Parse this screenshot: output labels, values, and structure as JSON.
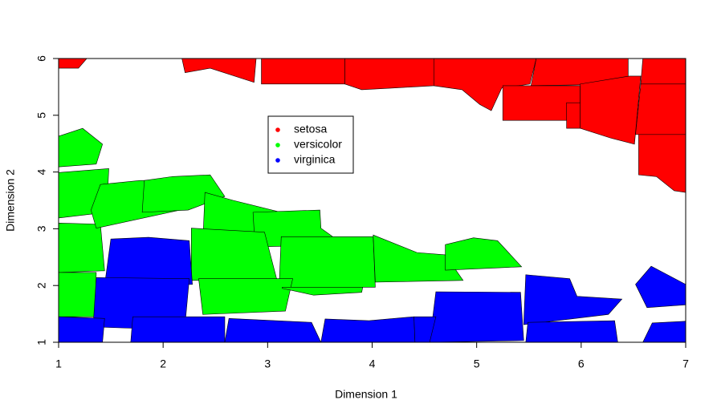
{
  "chart_data": {
    "type": "polygon",
    "x_label": "Dimension 1",
    "y_label": "Dimension 2",
    "xlim": [
      1,
      7
    ],
    "ylim": [
      1,
      6
    ],
    "xticks": [
      1,
      2,
      3,
      4,
      5,
      6,
      7
    ],
    "yticks": [
      1,
      2,
      3,
      4,
      5,
      6
    ],
    "series": [
      {
        "name": "setosa",
        "color": "#ff0000",
        "polygons": [
          {
            "x": [
              1,
              1.27,
              1.19,
              1
            ],
            "y": [
              6,
              6,
              5.83,
              5.83
            ]
          },
          {
            "x": [
              2.18,
              2.89,
              2.87,
              2.45,
              2.21
            ],
            "y": [
              6,
              6,
              5.58,
              5.83,
              5.75
            ]
          },
          {
            "x": [
              2.94,
              3.74,
              3.74,
              2.94
            ],
            "y": [
              6,
              6,
              5.55,
              5.55
            ]
          },
          {
            "x": [
              3.74,
              4.59,
              4.59,
              4.2,
              3.9,
              3.74
            ],
            "y": [
              6,
              6,
              5.52,
              5.48,
              5.45,
              5.55
            ]
          },
          {
            "x": [
              4.59,
              5.57,
              5.51,
              5.24,
              5.14,
              5.03,
              4.86,
              4.59
            ],
            "y": [
              6,
              6,
              5.55,
              5.48,
              5.08,
              5.19,
              5.45,
              5.52
            ]
          },
          {
            "x": [
              5.57,
              6.45,
              6.45,
              5.52
            ],
            "y": [
              6,
              6,
              5.55,
              5.52
            ]
          },
          {
            "x": [
              6.59,
              7,
              7,
              6.57
            ],
            "y": [
              6,
              6,
              5.55,
              5.55
            ]
          },
          {
            "x": [
              5.25,
              5.99,
              5.99,
              5.25
            ],
            "y": [
              5.52,
              5.52,
              4.91,
              4.91
            ]
          },
          {
            "x": [
              5.99,
              6.46,
              6.57,
              6.51,
              6.28,
              5.99
            ],
            "y": [
              5.55,
              5.69,
              5.69,
              4.49,
              4.6,
              4.77
            ]
          },
          {
            "x": [
              5.86,
              5.99,
              5.99,
              5.86
            ],
            "y": [
              5.22,
              5.22,
              4.77,
              4.77
            ]
          },
          {
            "x": [
              6.57,
              7,
              7,
              6.52
            ],
            "y": [
              5.55,
              5.55,
              4.66,
              4.66
            ]
          },
          {
            "x": [
              6.55,
              7,
              7,
              6.89,
              6.72,
              6.55
            ],
            "y": [
              4.66,
              4.66,
              3.64,
              3.67,
              3.92,
              3.95
            ]
          }
        ]
      },
      {
        "name": "versicolor",
        "color": "#00ff00",
        "polygons": [
          {
            "x": [
              1,
              1.23,
              1.42,
              1.36,
              1
            ],
            "y": [
              4.63,
              4.77,
              4.49,
              4.14,
              4.09
            ]
          },
          {
            "x": [
              1,
              1.48,
              1.46,
              1
            ],
            "y": [
              3.99,
              4.06,
              3.29,
              3.19
            ]
          },
          {
            "x": [
              1,
              1.4,
              1.44,
              1
            ],
            "y": [
              3.1,
              3.08,
              2.26,
              2.23
            ]
          },
          {
            "x": [
              1,
              1.36,
              1.35,
              1
            ],
            "y": [
              2.23,
              2.23,
              1.45,
              1.45
            ]
          },
          {
            "x": [
              1.4,
              1.78,
              2.28,
              2.24,
              1.36,
              1.31
            ],
            "y": [
              3.78,
              3.85,
              3.85,
              3.36,
              3.01,
              3.33
            ]
          },
          {
            "x": [
              1.82,
              2.09,
              2.45,
              2.59,
              2.24,
              1.8
            ],
            "y": [
              3.85,
              3.92,
              3.95,
              3.57,
              3.33,
              3.29
            ]
          },
          {
            "x": [
              2.4,
              2.67,
              3.13,
              2.86,
              2.38
            ],
            "y": [
              3.64,
              3.5,
              3.29,
              2.79,
              2.75
            ]
          },
          {
            "x": [
              2.86,
              3.5,
              3.51,
              3.73,
              2.88
            ],
            "y": [
              3.29,
              3.33,
              3.01,
              2.72,
              2.68
            ]
          },
          {
            "x": [
              2.27,
              2.97,
              3.09,
              2.27
            ],
            "y": [
              3.01,
              2.94,
              2.09,
              2.09
            ]
          },
          {
            "x": [
              3.13,
              4.01,
              4.03,
              3.11
            ],
            "y": [
              2.86,
              2.86,
              1.97,
              1.97
            ]
          },
          {
            "x": [
              4.01,
              4.43,
              4.7,
              4.87,
              4.03
            ],
            "y": [
              2.89,
              2.58,
              2.54,
              2.09,
              2.06
            ]
          },
          {
            "x": [
              4.7,
              4.97,
              5.2,
              5.43,
              4.7
            ],
            "y": [
              2.72,
              2.84,
              2.79,
              2.33,
              2.27
            ]
          },
          {
            "x": [
              2.34,
              3.24,
              3.17,
              2.38
            ],
            "y": [
              2.12,
              2.12,
              1.55,
              1.49
            ]
          },
          {
            "x": [
              3.14,
              3.91,
              3.9,
              3.44,
              3.14
            ],
            "y": [
              1.97,
              1.97,
              1.88,
              1.83,
              1.95
            ]
          }
        ]
      },
      {
        "name": "virginica",
        "color": "#0000ff",
        "polygons": [
          {
            "x": [
              1.5,
              1.86,
              2.25,
              2.28,
              1.44
            ],
            "y": [
              2.82,
              2.85,
              2.79,
              2.02,
              2
            ]
          },
          {
            "x": [
              1.36,
              2.25,
              2.21,
              1.82,
              1.33
            ],
            "y": [
              2.14,
              2.12,
              1.31,
              1.24,
              1.27
            ]
          },
          {
            "x": [
              1,
              1.44,
              1.42,
              1
            ],
            "y": [
              1.45,
              1.42,
              1,
              1
            ]
          },
          {
            "x": [
              1.71,
              2.59,
              2.59,
              1.69
            ],
            "y": [
              1.45,
              1.45,
              1,
              1
            ]
          },
          {
            "x": [
              2.63,
              3.42,
              3.51,
              2.59
            ],
            "y": [
              1.42,
              1.35,
              1,
              1
            ]
          },
          {
            "x": [
              3.55,
              3.97,
              4.4,
              4.41,
              3.51
            ],
            "y": [
              1.41,
              1.38,
              1.45,
              1,
              1
            ]
          },
          {
            "x": [
              4.61,
              5.42,
              5.45,
              4.55
            ],
            "y": [
              1.89,
              1.88,
              1.03,
              1
            ]
          },
          {
            "x": [
              4.4,
              4.61,
              4.55,
              4.41
            ],
            "y": [
              1.45,
              1.45,
              1,
              1
            ]
          },
          {
            "x": [
              5.47,
              5.89,
              5.96,
              6.39,
              6.26,
              5.45
            ],
            "y": [
              2.19,
              2.12,
              1.81,
              1.76,
              1.49,
              1.31
            ]
          },
          {
            "x": [
              5.49,
              6.32,
              6.35,
              5.47
            ],
            "y": [
              1.35,
              1.38,
              1,
              1
            ]
          },
          {
            "x": [
              6.52,
              6.67,
              7,
              7,
              6.63
            ],
            "y": [
              2.02,
              2.34,
              2.02,
              1.66,
              1.61
            ]
          },
          {
            "x": [
              6.68,
              7,
              7,
              6.59
            ],
            "y": [
              1.34,
              1.37,
              1,
              1
            ]
          }
        ]
      }
    ]
  }
}
